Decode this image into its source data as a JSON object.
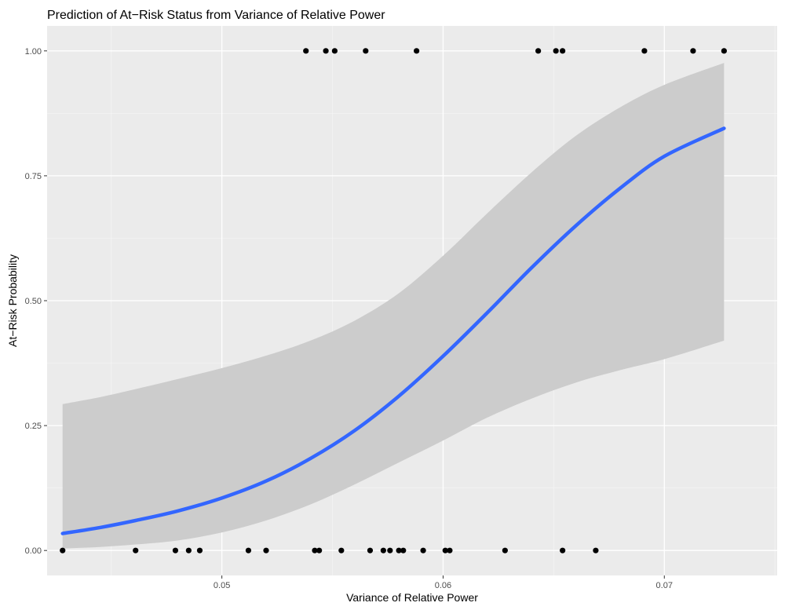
{
  "chart_data": {
    "type": "scatter",
    "title": "Prediction of At−Risk Status from Variance of Relative Power",
    "xlabel": "Variance of Relative Power",
    "ylabel": "At−Risk Probability",
    "xlim": [
      0.0421,
      0.0751
    ],
    "ylim": [
      -0.05,
      1.05
    ],
    "x_ticks": [
      {
        "value": 0.05,
        "label": "0.05"
      },
      {
        "value": 0.06,
        "label": "0.06"
      },
      {
        "value": 0.07,
        "label": "0.07"
      }
    ],
    "y_ticks": [
      {
        "value": 0.0,
        "label": "0.00"
      },
      {
        "value": 0.25,
        "label": "0.25"
      },
      {
        "value": 0.5,
        "label": "0.50"
      },
      {
        "value": 0.75,
        "label": "0.75"
      },
      {
        "value": 1.0,
        "label": "1.00"
      }
    ],
    "grid": true,
    "points": {
      "x": [
        0.0428,
        0.0461,
        0.0479,
        0.0485,
        0.049,
        0.0512,
        0.052,
        0.0542,
        0.0544,
        0.0554,
        0.0567,
        0.0573,
        0.0576,
        0.058,
        0.0582,
        0.0591,
        0.0601,
        0.0603,
        0.0628,
        0.0654,
        0.0669,
        0.0538,
        0.0547,
        0.0551,
        0.0565,
        0.0588,
        0.0643,
        0.0651,
        0.0654,
        0.0691,
        0.0713,
        0.0727
      ],
      "y": [
        0,
        0,
        0,
        0,
        0,
        0,
        0,
        0,
        0,
        0,
        0,
        0,
        0,
        0,
        0,
        0,
        0,
        0,
        0,
        0,
        0,
        1,
        1,
        1,
        1,
        1,
        1,
        1,
        1,
        1,
        1,
        1
      ]
    },
    "fit_line": {
      "x": [
        0.0428,
        0.0445,
        0.0461,
        0.048,
        0.05,
        0.052,
        0.054,
        0.056,
        0.058,
        0.06,
        0.062,
        0.064,
        0.066,
        0.068,
        0.07,
        0.0727
      ],
      "y": [
        0.034,
        0.046,
        0.06,
        0.079,
        0.105,
        0.139,
        0.184,
        0.24,
        0.309,
        0.389,
        0.476,
        0.566,
        0.65,
        0.725,
        0.789,
        0.845
      ]
    },
    "confidence_band": {
      "x": [
        0.0428,
        0.0445,
        0.0461,
        0.048,
        0.05,
        0.052,
        0.054,
        0.056,
        0.058,
        0.06,
        0.062,
        0.064,
        0.066,
        0.068,
        0.07,
        0.0727
      ],
      "lower": [
        0.004,
        0.007,
        0.012,
        0.02,
        0.036,
        0.06,
        0.092,
        0.132,
        0.176,
        0.22,
        0.266,
        0.304,
        0.336,
        0.361,
        0.383,
        0.42
      ],
      "upper": [
        0.293,
        0.307,
        0.323,
        0.343,
        0.365,
        0.39,
        0.42,
        0.46,
        0.515,
        0.59,
        0.675,
        0.757,
        0.83,
        0.887,
        0.932,
        0.976
      ]
    },
    "colors": {
      "panel_background": "#ebebeb",
      "grid_major": "#ffffff",
      "grid_minor": "#f5f5f5",
      "fit_line": "#3366ff",
      "band_fill": "#cccccc",
      "points": "#000000"
    }
  }
}
